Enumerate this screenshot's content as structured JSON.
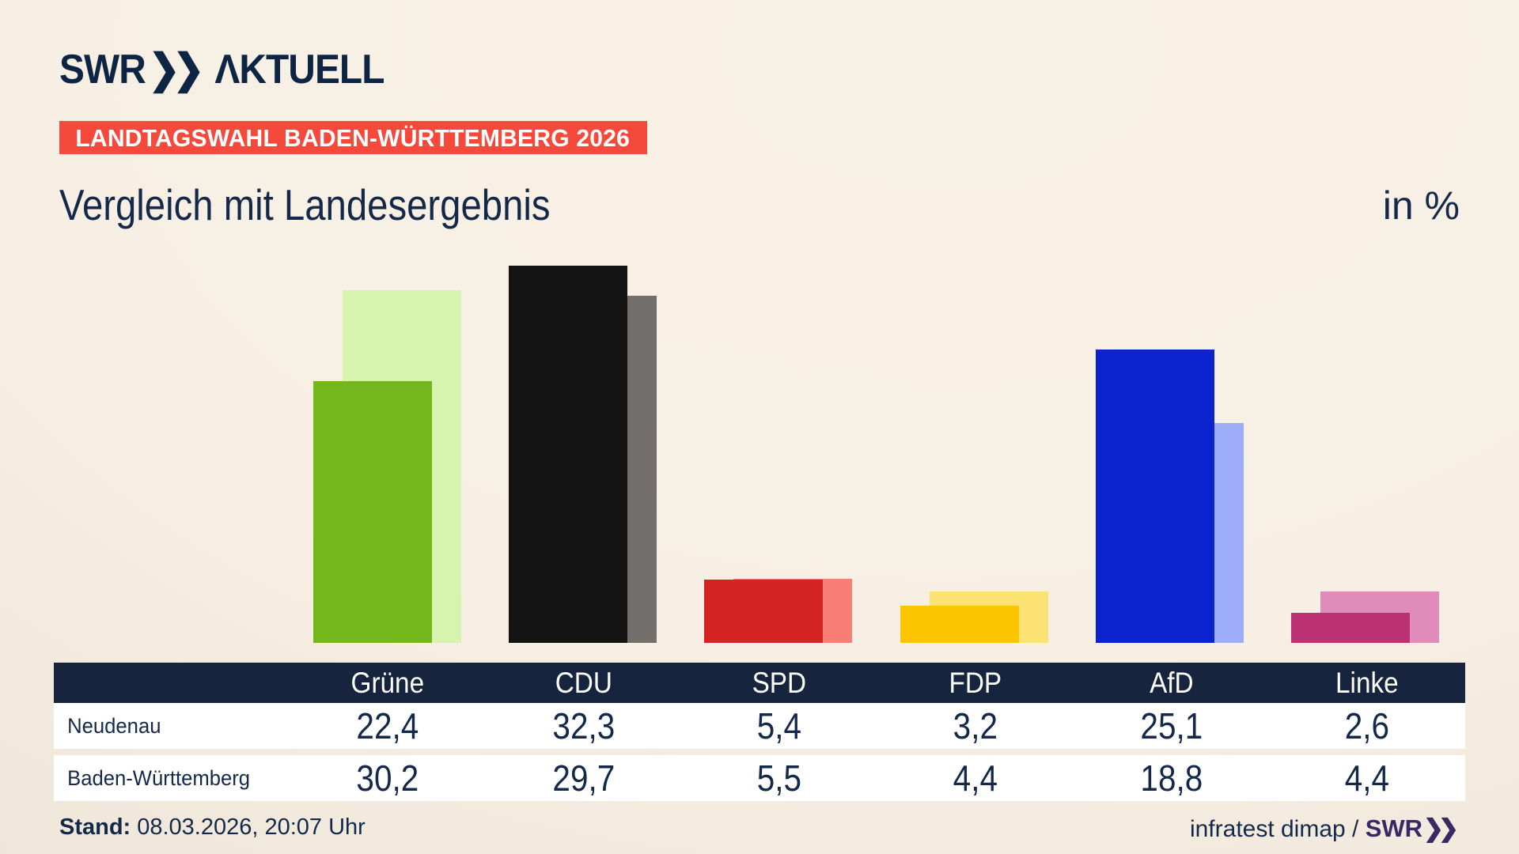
{
  "brand": {
    "swr": "SWR",
    "chevrons": "❯❯",
    "aktuell": "ΛKTUELL"
  },
  "badge": {
    "label": "LANDTAGSWAHL BADEN-WÜRTTEMBERG 2026",
    "bg_color": "#f4493b"
  },
  "title": "Vergleich mit Landesergebnis",
  "unit_label": "in %",
  "chart_data": {
    "type": "bar",
    "categories": [
      "Grüne",
      "CDU",
      "SPD",
      "FDP",
      "AfD",
      "Linke"
    ],
    "series": [
      {
        "name": "Neudenau",
        "values": [
          22.4,
          32.3,
          5.4,
          3.2,
          25.1,
          2.6
        ],
        "colors": [
          "#74b71c",
          "#141414",
          "#d42322",
          "#fcc500",
          "#0a23cf",
          "#bb3173"
        ]
      },
      {
        "name": "Baden-Württemberg",
        "values": [
          30.2,
          29.7,
          5.5,
          4.4,
          18.8,
          4.4
        ],
        "colors": [
          "#d6f4ad",
          "#716e6b",
          "#f87d74",
          "#fbe273",
          "#9dadfa",
          "#df8cba"
        ]
      }
    ],
    "unit": "%",
    "ylim": [
      0,
      35
    ],
    "grid": false,
    "legend": "none (series identified via table row labels)",
    "note": "background bars = Baden-Württemberg (lighter, offset right/behind), foreground bars = Neudenau"
  },
  "table": {
    "header": [
      "Grüne",
      "CDU",
      "SPD",
      "FDP",
      "AfD",
      "Linke"
    ],
    "rows": [
      {
        "label": "Neudenau",
        "values": [
          "22,4",
          "32,3",
          "5,4",
          "3,2",
          "25,1",
          "2,6"
        ]
      },
      {
        "label": "Baden-Württemberg",
        "values": [
          "30,2",
          "29,7",
          "5,5",
          "4,4",
          "18,8",
          "4,4"
        ]
      }
    ],
    "header_bg": "#16243e",
    "row_bg": "#ffffff",
    "text_color": "#14294a"
  },
  "footer": {
    "stand_label": "Stand:",
    "stand_value": "08.03.2026, 20:07 Uhr",
    "source": "infratest dimap / ",
    "source_brand": "SWR",
    "source_chevrons": "❯❯"
  },
  "colors": {
    "navy_text": "#14294a",
    "header_navy": "#16243e",
    "badge_red": "#f4493b",
    "footer_brand_purple": "#372a64",
    "bg_cream": "#f8f1e6",
    "bg_gray_corner": "#c7c4c0"
  }
}
